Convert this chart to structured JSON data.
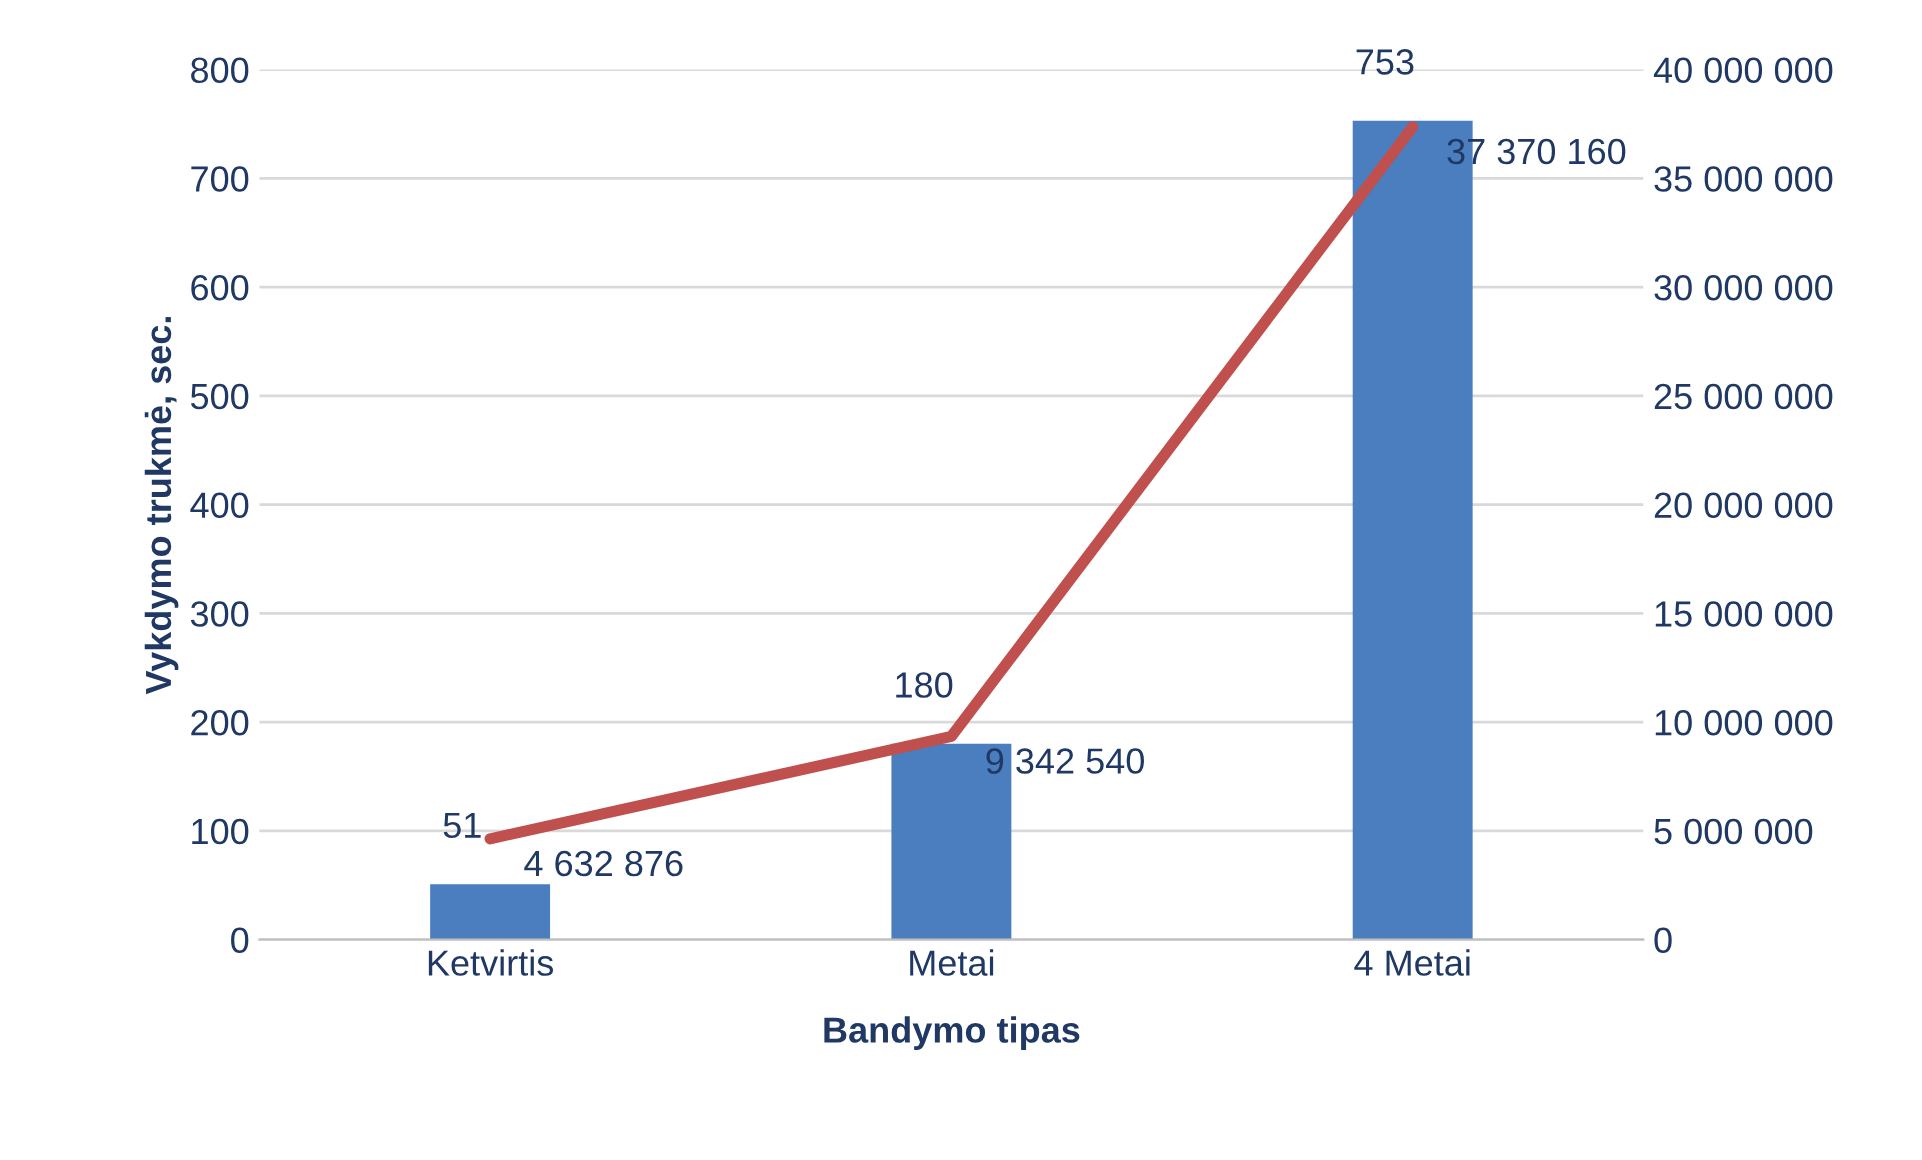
{
  "chart_data": {
    "type": "bar",
    "xlabel": "Bandymo tipas",
    "ylabel": "Vykdymo trukmė, sec.",
    "categories": [
      "Ketvirtis",
      "Metai",
      "4 Metai"
    ],
    "series": [
      {
        "color": "#4a7ebf",
        "values": [
          51,
          180,
          753
        ],
        "value_labels": [
          "51",
          "180",
          "753"
        ]
      },
      {
        "type": "line",
        "axis": "y2",
        "color": "#c0504d",
        "values": [
          4632876,
          9342540,
          37370160
        ],
        "value_labels": [
          "4 632 876",
          "9 342 540",
          "37 370 160"
        ]
      }
    ],
    "ylim": [
      0,
      800
    ],
    "yticks": [
      0,
      100,
      200,
      300,
      400,
      500,
      600,
      700,
      800
    ],
    "y2lim": [
      0,
      40000000
    ],
    "y2ticks": [
      0,
      {
        "value": 5000000,
        "label": "5 000 000"
      },
      {
        "value": 10000000,
        "label": "10 000 000"
      },
      {
        "value": 15000000,
        "label": "15 000 000"
      },
      {
        "value": 20000000,
        "label": "20 000 000"
      },
      {
        "value": 25000000,
        "label": "25 000 000"
      },
      {
        "value": 30000000,
        "label": "30 000 000"
      },
      {
        "value": 35000000,
        "label": "35 000 000"
      },
      {
        "value": 40000000,
        "label": "40 000 000"
      }
    ],
    "grid": "y",
    "marker": "none",
    "line_style": "solid"
  }
}
